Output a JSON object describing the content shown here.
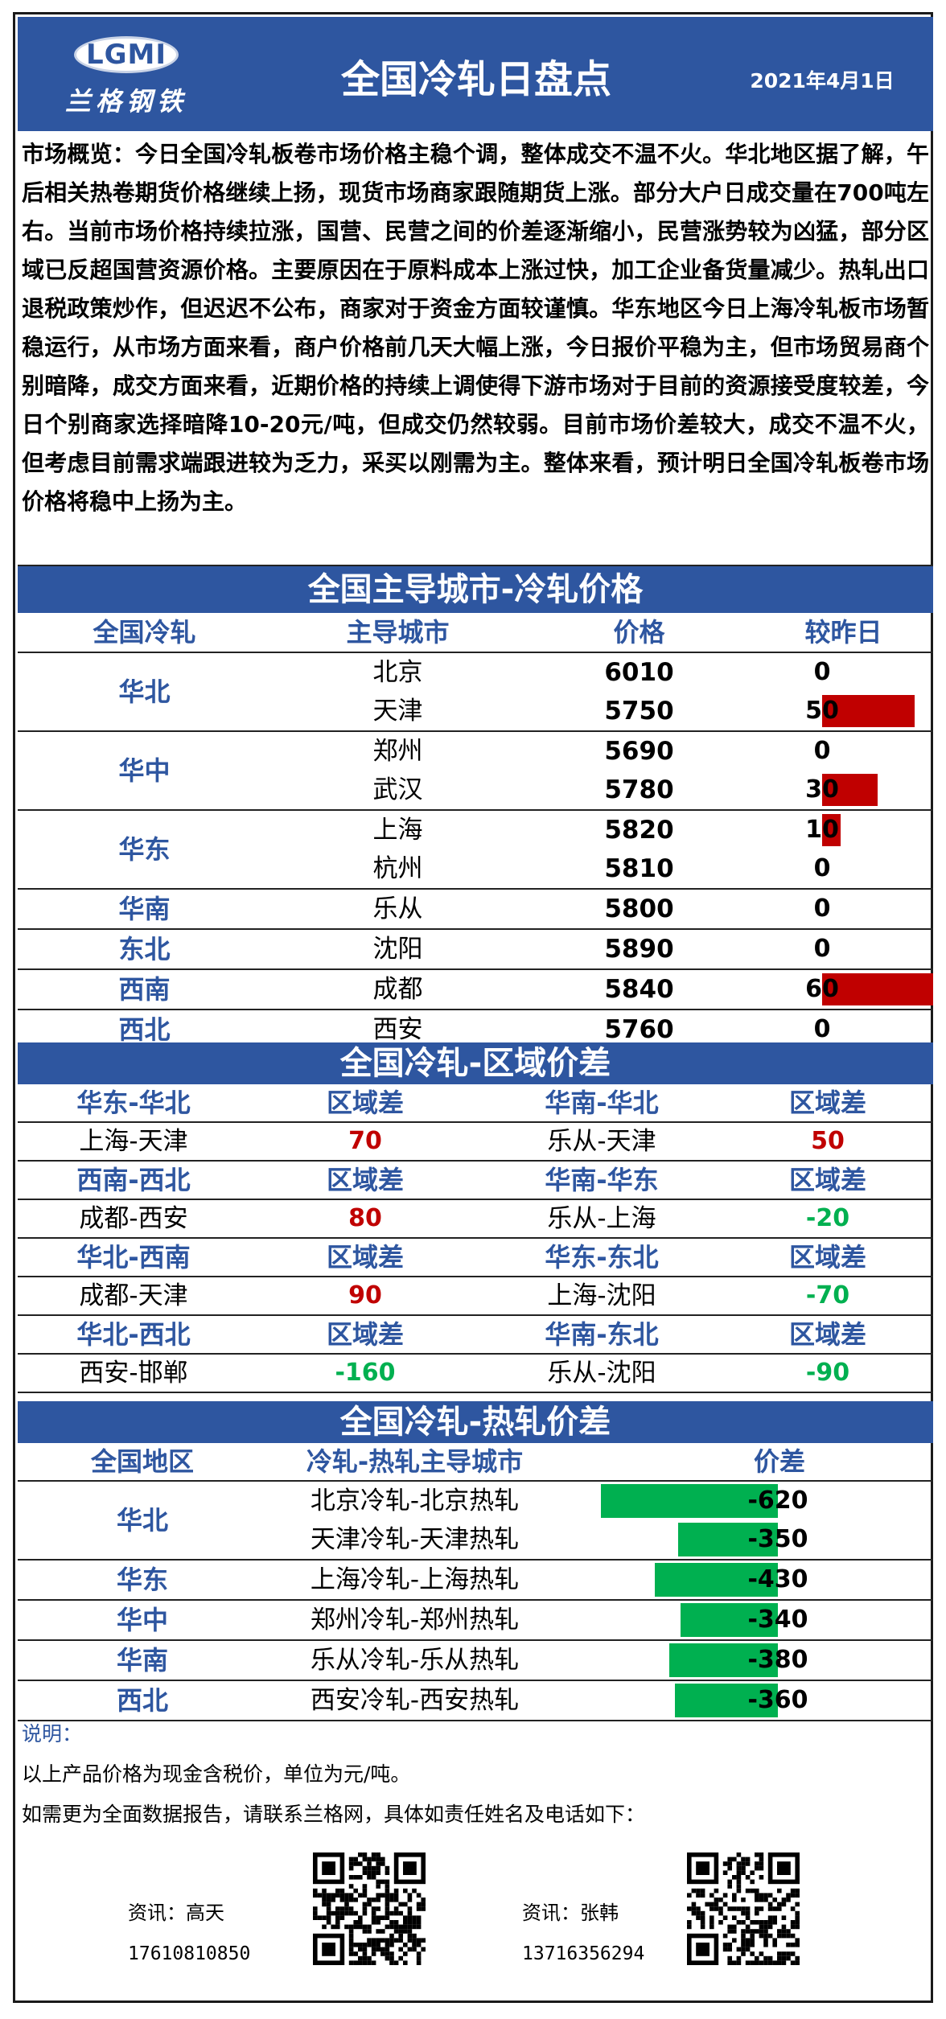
{
  "header": {
    "logo_text": "LGMI",
    "logo_sub": "兰格钢铁",
    "title": "全国冷轧日盘点",
    "date": "2021年4月1日"
  },
  "overview": "市场概览：今日全国冷轧板卷市场价格主稳个调，整体成交不温不火。华北地区据了解，午后相关热卷期货价格继续上扬，现货市场商家跟随期货上涨。部分大户日成交量在700吨左右。当前市场价格持续拉涨，国营、民营之间的价差逐渐缩小，民营涨势较为凶猛，部分区域已反超国营资源价格。主要原因在于原料成本上涨过快，加工企业备货量减少。热轧出口退税政策炒作，但迟迟不公布，商家对于资金方面较谨慎。华东地区今日上海冷轧板市场暂稳运行，从市场方面来看，商户价格前几天大幅上涨，今日报价平稳为主，但市场贸易商个别暗降，成交方面来看，近期价格的持续上调使得下游市场对于目前的资源接受度较差，今日个别商家选择暗降10-20元/吨，但成交仍然较弱。目前市场价差较大，成交不温不火，但考虑目前需求端跟进较为乏力，采买以刚需为主。整体来看，预计明日全国冷轧板卷市场价格将稳中上扬为主。",
  "price_table": {
    "title": "全国主导城市-冷轧价格",
    "headers": [
      "全国冷轧",
      "主导城市",
      "价格",
      "较昨日"
    ],
    "groups": [
      {
        "region": "华北",
        "rows": [
          {
            "city": "北京",
            "price": "6010",
            "change": "0"
          },
          {
            "city": "天津",
            "price": "5750",
            "change": "50"
          }
        ]
      },
      {
        "region": "华中",
        "rows": [
          {
            "city": "郑州",
            "price": "5690",
            "change": "0"
          },
          {
            "city": "武汉",
            "price": "5780",
            "change": "30"
          }
        ]
      },
      {
        "region": "华东",
        "rows": [
          {
            "city": "上海",
            "price": "5820",
            "change": "10"
          },
          {
            "city": "杭州",
            "price": "5810",
            "change": "0"
          }
        ]
      },
      {
        "region": "华南",
        "rows": [
          {
            "city": "乐从",
            "price": "5800",
            "change": "0"
          }
        ]
      },
      {
        "region": "东北",
        "rows": [
          {
            "city": "沈阳",
            "price": "5890",
            "change": "0"
          }
        ]
      },
      {
        "region": "西南",
        "rows": [
          {
            "city": "成都",
            "price": "5840",
            "change": "60"
          }
        ]
      },
      {
        "region": "西北",
        "rows": [
          {
            "city": "西安",
            "price": "5760",
            "change": "0"
          }
        ]
      }
    ]
  },
  "spread_table": {
    "title": "全国冷轧-区域价差",
    "col_label": "区域差",
    "blocks": [
      {
        "left_head": "华东-华北",
        "left_pair": "上海-天津",
        "left_val": "70",
        "right_head": "华南-华北",
        "right_pair": "乐从-天津",
        "right_val": "50"
      },
      {
        "left_head": "西南-西北",
        "left_pair": "成都-西安",
        "left_val": "80",
        "right_head": "华南-华东",
        "right_pair": "乐从-上海",
        "right_val": "-20"
      },
      {
        "left_head": "华北-西南",
        "left_pair": "成都-天津",
        "left_val": "90",
        "right_head": "华东-东北",
        "right_pair": "上海-沈阳",
        "right_val": "-70"
      },
      {
        "left_head": "华北-西北",
        "left_pair": "西安-邯郸",
        "left_val": "-160",
        "right_head": "华南-东北",
        "right_pair": "乐从-沈阳",
        "right_val": "-90"
      }
    ]
  },
  "hot_table": {
    "title": "全国冷轧-热轧价差",
    "headers": [
      "全国地区",
      "冷轧-热轧主导城市",
      "价差"
    ],
    "groups": [
      {
        "region": "华北",
        "rows": [
          {
            "pair": "北京冷轧-北京热轧",
            "diff": "-620"
          },
          {
            "pair": "天津冷轧-天津热轧",
            "diff": "-350"
          }
        ]
      },
      {
        "region": "华东",
        "rows": [
          {
            "pair": "上海冷轧-上海热轧",
            "diff": "-430"
          }
        ]
      },
      {
        "region": "华中",
        "rows": [
          {
            "pair": "郑州冷轧-郑州热轧",
            "diff": "-340"
          }
        ]
      },
      {
        "region": "华南",
        "rows": [
          {
            "pair": "乐从冷轧-乐从热轧",
            "diff": "-380"
          }
        ]
      },
      {
        "region": "西北",
        "rows": [
          {
            "pair": "西安冷轧-西安热轧",
            "diff": "-360"
          }
        ]
      }
    ]
  },
  "notes": {
    "label": "说明：",
    "line1": "以上产品价格为现金含税价，单位为元/吨。",
    "line2": "如需更为全面数据报告，请联系兰格网，具体如责任姓名及电话如下："
  },
  "contacts": [
    {
      "name": "资讯：高天",
      "phone": "17610810850"
    },
    {
      "name": "资讯：张韩",
      "phone": "13716356294"
    }
  ],
  "colors": {
    "brand_blue": "#2e56a0",
    "up_red": "#c00000",
    "down_green": "#00b050"
  }
}
